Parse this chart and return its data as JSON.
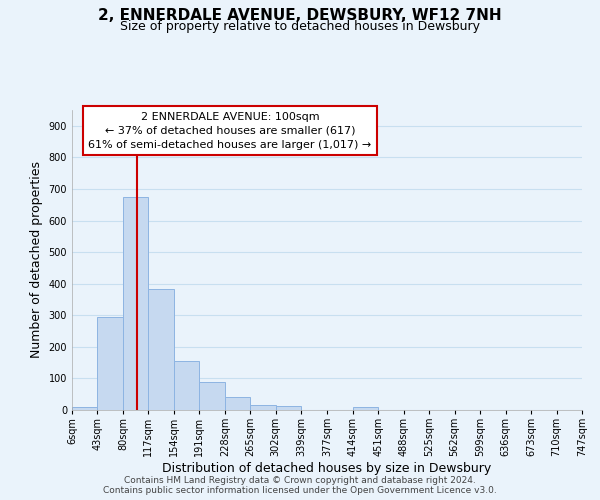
{
  "title": "2, ENNERDALE AVENUE, DEWSBURY, WF12 7NH",
  "subtitle": "Size of property relative to detached houses in Dewsbury",
  "xlabel": "Distribution of detached houses by size in Dewsbury",
  "ylabel": "Number of detached properties",
  "bar_edges": [
    6,
    43,
    80,
    117,
    154,
    191,
    228,
    265,
    302,
    339,
    377,
    414,
    451,
    488,
    525,
    562,
    599,
    636,
    673,
    710,
    747
  ],
  "bar_heights": [
    8,
    295,
    675,
    383,
    155,
    88,
    40,
    15,
    12,
    0,
    0,
    10,
    0,
    0,
    0,
    0,
    0,
    0,
    0,
    0
  ],
  "bar_color": "#c6d9f0",
  "bar_edge_color": "#8db4e2",
  "vline_x": 100,
  "vline_color": "#cc0000",
  "annotation_title": "2 ENNERDALE AVENUE: 100sqm",
  "annotation_line1": "← 37% of detached houses are smaller (617)",
  "annotation_line2": "61% of semi-detached houses are larger (1,017) →",
  "ylim": [
    0,
    950
  ],
  "yticks": [
    0,
    100,
    200,
    300,
    400,
    500,
    600,
    700,
    800,
    900
  ],
  "tick_labels": [
    "6sqm",
    "43sqm",
    "80sqm",
    "117sqm",
    "154sqm",
    "191sqm",
    "228sqm",
    "265sqm",
    "302sqm",
    "339sqm",
    "377sqm",
    "414sqm",
    "451sqm",
    "488sqm",
    "525sqm",
    "562sqm",
    "599sqm",
    "636sqm",
    "673sqm",
    "710sqm",
    "747sqm"
  ],
  "footer1": "Contains HM Land Registry data © Crown copyright and database right 2024.",
  "footer2": "Contains public sector information licensed under the Open Government Licence v3.0.",
  "bg_color": "#eaf3fb",
  "plot_bg_color": "#eaf3fb",
  "grid_color": "#c8dff0",
  "title_fontsize": 11,
  "subtitle_fontsize": 9,
  "axis_label_fontsize": 9,
  "tick_fontsize": 7,
  "annotation_fontsize": 8,
  "footer_fontsize": 6.5
}
